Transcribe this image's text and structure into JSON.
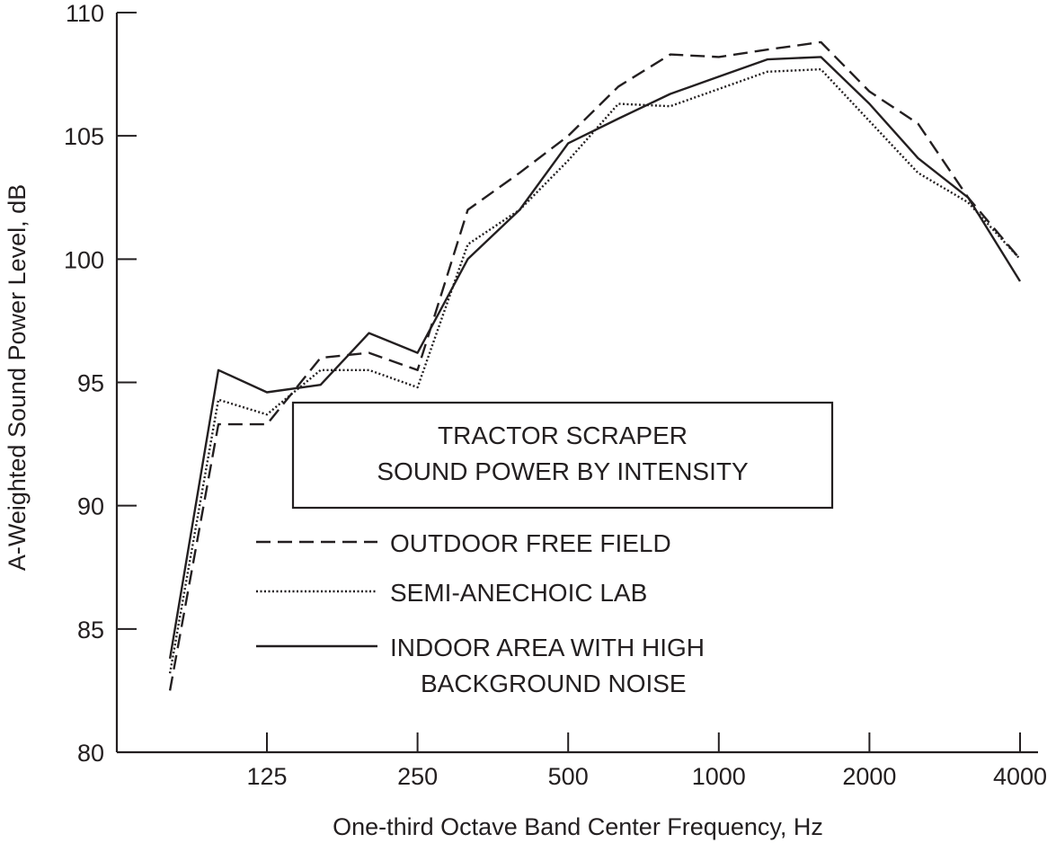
{
  "chart_data": {
    "type": "line",
    "title_lines": [
      "TRACTOR SCRAPER",
      "SOUND POWER BY INTENSITY"
    ],
    "xlabel": "One-third Octave Band Center Frequency, Hz",
    "ylabel": "A-Weighted Sound Power Level, dB",
    "x_scale": "log2",
    "x_ticks": [
      125,
      250,
      500,
      1000,
      2000,
      4000
    ],
    "x_tick_labels": [
      "125",
      "250",
      "500",
      "1000",
      "2000",
      "4000"
    ],
    "y_ticks": [
      80,
      85,
      90,
      95,
      100,
      105,
      110
    ],
    "y_tick_labels": [
      "80",
      "85",
      "90",
      "95",
      "100",
      "105",
      "110"
    ],
    "ylim": [
      80,
      110
    ],
    "xlim": [
      63,
      4000
    ],
    "x": [
      80,
      100,
      125,
      160,
      200,
      250,
      315,
      400,
      500,
      630,
      800,
      1000,
      1250,
      1600,
      2000,
      2500,
      3150,
      4000
    ],
    "series": [
      {
        "name": "OUTDOOR FREE FIELD",
        "style": "dashed",
        "values": [
          82.5,
          93.3,
          93.3,
          96.0,
          96.2,
          95.5,
          102.0,
          103.5,
          105.0,
          107.0,
          108.3,
          108.2,
          108.5,
          108.8,
          106.8,
          105.5,
          102.5,
          100.0
        ]
      },
      {
        "name": "SEMI-ANECHOIC LAB",
        "style": "dotted",
        "values": [
          83.2,
          94.3,
          93.7,
          95.5,
          95.5,
          94.8,
          100.6,
          102.0,
          104.0,
          106.3,
          106.2,
          106.9,
          107.6,
          107.7,
          105.6,
          103.5,
          102.3,
          100.0
        ]
      },
      {
        "name": "INDOOR AREA WITH HIGH BACKGROUND NOISE",
        "legend_lines": [
          "INDOOR AREA WITH HIGH",
          "BACKGROUND NOISE"
        ],
        "style": "solid",
        "values": [
          83.8,
          95.5,
          94.6,
          94.9,
          97.0,
          96.2,
          100.0,
          102.0,
          104.7,
          105.7,
          106.7,
          107.4,
          108.1,
          108.2,
          106.3,
          104.1,
          102.5,
          99.1
        ]
      }
    ],
    "legend_position": "center",
    "grid": false
  }
}
